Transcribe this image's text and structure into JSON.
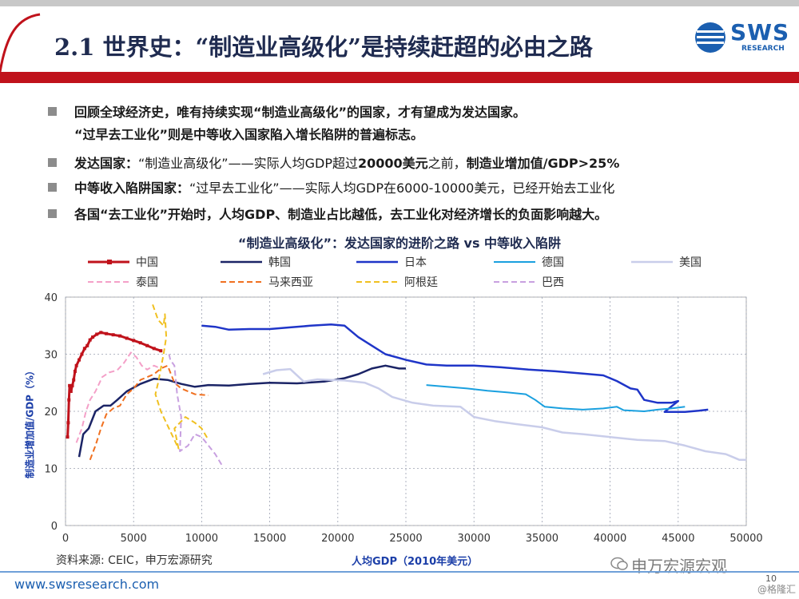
{
  "slide": {
    "title": "2.1 世界史：“制造业高级化”是持续赶超的必由之路",
    "logo_text": "SWS",
    "logo_sub": "RESEARCH",
    "bullets": [
      {
        "parts": [
          {
            "t": "回顾全球经济史，唯有持续实现“制造业高级化”的国家，才有望成为发达国家。",
            "b": true
          }
        ]
      },
      {
        "parts": [
          {
            "t": "“过早去工业化”则是中等收入国家陷入增长陷阱的普遍标志。",
            "b": true
          }
        ],
        "cont": true
      },
      {
        "parts": [
          {
            "t": "发达国家：",
            "b": true
          },
          {
            "t": "“制造业高级化”——实际人均GDP超过",
            "b": false
          },
          {
            "t": "20000美元",
            "b": true
          },
          {
            "t": "之前，",
            "b": false
          },
          {
            "t": "制造业增加值/GDP>25%",
            "b": true
          }
        ]
      },
      {
        "parts": [
          {
            "t": "中等收入陷阱国家：",
            "b": true
          },
          {
            "t": "“过早去工业化”——实际人均GDP在6000-10000美元，已经开始去工业化",
            "b": false
          }
        ]
      },
      {
        "parts": [
          {
            "t": "各国“去工业化”开始时，人均GDP、制造业占比越低，去工业化对经济增长的负面影响越大。",
            "b": true
          }
        ]
      }
    ],
    "source": "资料来源: CEIC，申万宏源研究",
    "footer_url": "www.swsresearch.com",
    "watermark": "申万宏源宏观",
    "watermark2": "@格隆汇",
    "page_number": "10"
  },
  "chart_data": {
    "type": "line",
    "title": "“制造业高级化”：发达国家的进阶之路 vs 中等收入陷阱",
    "xlabel": "人均GDP（2010年美元）",
    "ylabel": "制造业增加值/GDP（%）",
    "xlim": [
      0,
      50000
    ],
    "ylim": [
      0,
      40
    ],
    "xticks": [
      0,
      5000,
      10000,
      15000,
      20000,
      25000,
      30000,
      35000,
      40000,
      45000,
      50000
    ],
    "yticks": [
      0,
      10,
      20,
      30,
      40
    ],
    "grid": true,
    "legend_position": "top",
    "series": [
      {
        "name": "中国",
        "color": "#c0121b",
        "dash": false,
        "marker": true,
        "width": 3,
        "points": [
          [
            150,
            15.5
          ],
          [
            200,
            18
          ],
          [
            250,
            22
          ],
          [
            300,
            24.5
          ],
          [
            400,
            23.5
          ],
          [
            500,
            24.5
          ],
          [
            600,
            25.5
          ],
          [
            700,
            27
          ],
          [
            800,
            28
          ],
          [
            1000,
            29
          ],
          [
            1200,
            30
          ],
          [
            1400,
            31
          ],
          [
            1600,
            31.5
          ],
          [
            1800,
            32.5
          ],
          [
            2000,
            33
          ],
          [
            2300,
            33.5
          ],
          [
            2600,
            33.8
          ],
          [
            3000,
            33.6
          ],
          [
            3500,
            33.4
          ],
          [
            4000,
            33.2
          ],
          [
            4500,
            32.8
          ],
          [
            5000,
            32.4
          ],
          [
            5500,
            32
          ],
          [
            6000,
            31.5
          ],
          [
            6500,
            31
          ],
          [
            7000,
            30.6
          ]
        ]
      },
      {
        "name": "韩国",
        "color": "#1b2466",
        "dash": false,
        "width": 2.5,
        "points": [
          [
            1000,
            12
          ],
          [
            1300,
            16
          ],
          [
            1700,
            17
          ],
          [
            2200,
            20
          ],
          [
            2800,
            21
          ],
          [
            3300,
            21
          ],
          [
            3800,
            22
          ],
          [
            4500,
            23.5
          ],
          [
            5500,
            24.8
          ],
          [
            6500,
            25.7
          ],
          [
            7500,
            25.5
          ],
          [
            8500,
            24.8
          ],
          [
            9500,
            24.3
          ],
          [
            10500,
            24.6
          ],
          [
            12000,
            24.5
          ],
          [
            13500,
            24.8
          ],
          [
            15000,
            25
          ],
          [
            17000,
            24.9
          ],
          [
            19000,
            25.2
          ],
          [
            20500,
            25.8
          ],
          [
            21500,
            26.5
          ],
          [
            22500,
            27.5
          ],
          [
            23500,
            28
          ],
          [
            24500,
            27.5
          ],
          [
            25000,
            27.5
          ]
        ]
      },
      {
        "name": "日本",
        "color": "#1f35c8",
        "dash": false,
        "width": 2.5,
        "points": [
          [
            10000,
            35
          ],
          [
            11000,
            34.8
          ],
          [
            12000,
            34.3
          ],
          [
            13500,
            34.4
          ],
          [
            15000,
            34.4
          ],
          [
            16500,
            34.7
          ],
          [
            18000,
            35
          ],
          [
            19500,
            35.2
          ],
          [
            20500,
            35
          ],
          [
            21500,
            33
          ],
          [
            22500,
            31.5
          ],
          [
            23500,
            30
          ],
          [
            25000,
            29
          ],
          [
            26500,
            28.2
          ],
          [
            28000,
            28
          ],
          [
            30000,
            28
          ],
          [
            32000,
            27.7
          ],
          [
            34000,
            27.3
          ],
          [
            36000,
            27
          ],
          [
            38000,
            26.6
          ],
          [
            39500,
            26.3
          ],
          [
            40500,
            25.3
          ],
          [
            41500,
            24
          ],
          [
            42000,
            23.8
          ],
          [
            42500,
            22
          ],
          [
            43500,
            21.5
          ],
          [
            44500,
            21.5
          ],
          [
            45000,
            21.8
          ],
          [
            44000,
            19.9
          ],
          [
            45500,
            19.9
          ],
          [
            46500,
            20.1
          ],
          [
            47200,
            20.3
          ]
        ]
      },
      {
        "name": "德国",
        "color": "#1aa0df",
        "dash": false,
        "width": 2,
        "points": [
          [
            26500,
            24.6
          ],
          [
            28000,
            24.3
          ],
          [
            29500,
            24
          ],
          [
            31000,
            23.6
          ],
          [
            32500,
            23.3
          ],
          [
            33800,
            23
          ],
          [
            34500,
            22
          ],
          [
            35200,
            20.8
          ],
          [
            36500,
            20.5
          ],
          [
            38000,
            20.3
          ],
          [
            39500,
            20.5
          ],
          [
            40500,
            20.8
          ],
          [
            41000,
            20.2
          ],
          [
            42500,
            20
          ],
          [
            43500,
            20.3
          ],
          [
            44500,
            20.5
          ],
          [
            45500,
            20.8
          ]
        ]
      },
      {
        "name": "美国",
        "color": "#c9cdea",
        "dash": false,
        "width": 2.5,
        "points": [
          [
            14500,
            26.5
          ],
          [
            15500,
            27.2
          ],
          [
            16500,
            27.4
          ],
          [
            17500,
            25.2
          ],
          [
            18500,
            25.6
          ],
          [
            20500,
            25.4
          ],
          [
            22000,
            25
          ],
          [
            23000,
            24
          ],
          [
            24000,
            22.5
          ],
          [
            25500,
            21.5
          ],
          [
            27000,
            21
          ],
          [
            29000,
            20.8
          ],
          [
            30000,
            19
          ],
          [
            31500,
            18.3
          ],
          [
            33000,
            17.8
          ],
          [
            35000,
            17.2
          ],
          [
            36500,
            16.3
          ],
          [
            38000,
            16
          ],
          [
            40000,
            15.5
          ],
          [
            42000,
            15
          ],
          [
            44000,
            14.8
          ],
          [
            45500,
            14
          ],
          [
            47000,
            13
          ],
          [
            48500,
            12.5
          ],
          [
            49000,
            12
          ],
          [
            49500,
            11.5
          ],
          [
            50000,
            11.5
          ]
        ]
      },
      {
        "name": "泰国",
        "color": "#f4a0c8",
        "dash": true,
        "width": 2,
        "points": [
          [
            800,
            14.5
          ],
          [
            1200,
            17
          ],
          [
            1500,
            20
          ],
          [
            1800,
            22
          ],
          [
            2200,
            23.5
          ],
          [
            2700,
            26
          ],
          [
            3200,
            26.8
          ],
          [
            3800,
            27.2
          ],
          [
            4300,
            28.5
          ],
          [
            4800,
            30.3
          ],
          [
            5200,
            29.5
          ],
          [
            5600,
            28
          ],
          [
            6000,
            27.3
          ],
          [
            6500,
            28
          ],
          [
            7000,
            27.5
          ]
        ]
      },
      {
        "name": "马来西亚",
        "color": "#f07020",
        "dash": true,
        "width": 2,
        "points": [
          [
            1800,
            11.5
          ],
          [
            2200,
            14
          ],
          [
            2600,
            17
          ],
          [
            3000,
            19.5
          ],
          [
            3500,
            20.5
          ],
          [
            4000,
            21
          ],
          [
            4500,
            23
          ],
          [
            5000,
            24
          ],
          [
            5500,
            25.5
          ],
          [
            6500,
            26.5
          ],
          [
            7000,
            27.5
          ],
          [
            7500,
            28
          ],
          [
            8000,
            25
          ],
          [
            8500,
            24
          ],
          [
            9500,
            23
          ],
          [
            10500,
            22.8
          ]
        ]
      },
      {
        "name": "阿根廷",
        "color": "#f0c020",
        "dash": true,
        "width": 2,
        "points": [
          [
            6400,
            38.7
          ],
          [
            6800,
            36
          ],
          [
            7200,
            35
          ],
          [
            7300,
            37
          ],
          [
            7400,
            33
          ],
          [
            7200,
            30
          ],
          [
            6800,
            25
          ],
          [
            6600,
            23
          ],
          [
            7000,
            20
          ],
          [
            7500,
            17.5
          ],
          [
            8000,
            15
          ],
          [
            8300,
            13.5
          ],
          [
            8000,
            17
          ],
          [
            8800,
            19
          ],
          [
            9500,
            18
          ],
          [
            10000,
            17
          ],
          [
            10500,
            15
          ]
        ]
      },
      {
        "name": "巴西",
        "color": "#c8a0e0",
        "dash": true,
        "width": 2,
        "points": [
          [
            7600,
            30
          ],
          [
            7700,
            29
          ],
          [
            8000,
            28
          ],
          [
            8200,
            23
          ],
          [
            8500,
            19
          ],
          [
            8400,
            13
          ],
          [
            9000,
            14
          ],
          [
            9500,
            16
          ],
          [
            10000,
            15.5
          ],
          [
            10500,
            14
          ],
          [
            11000,
            12.5
          ],
          [
            11500,
            10.5
          ]
        ]
      }
    ]
  }
}
